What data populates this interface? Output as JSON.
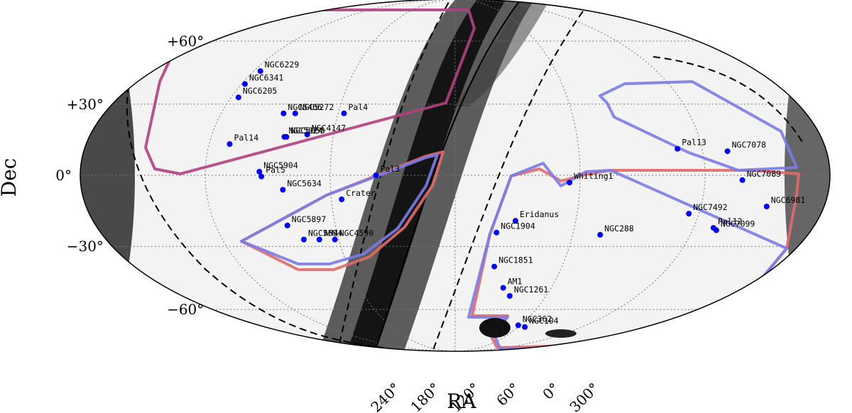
{
  "chart_data": {
    "type": "scatter",
    "projection": "mollweide",
    "xlabel": "RA",
    "ylabel": "Dec",
    "dec_ticks": [
      {
        "dec": 60,
        "label": "+60°"
      },
      {
        "dec": 30,
        "label": "+30°"
      },
      {
        "dec": 0,
        "label": "0°"
      },
      {
        "dec": -30,
        "label": "−30°"
      },
      {
        "dec": -60,
        "label": "−60°"
      }
    ],
    "ra_ticks": [
      "240°",
      "180°",
      "120°",
      "60°",
      "0°",
      "300°"
    ],
    "clusters": [
      {
        "name": "NGC6229",
        "lon": -116,
        "lat": 45
      },
      {
        "name": "NGC6341",
        "lon": -118,
        "lat": 39
      },
      {
        "name": "NGC6205",
        "lon": -116,
        "lat": 33
      },
      {
        "name": "NGC5466",
        "lon": -88,
        "lat": 26
      },
      {
        "name": "NGC5272",
        "lon": -82,
        "lat": 26
      },
      {
        "name": "Pal4",
        "lon": -57,
        "lat": 26
      },
      {
        "name": "NGC4147",
        "lon": -73,
        "lat": 17
      },
      {
        "name": "NGC5024",
        "lon": -84,
        "lat": 16
      },
      {
        "name": "NGC5053",
        "lon": -83,
        "lat": 16
      },
      {
        "name": "Pal14",
        "lon": -110,
        "lat": 13
      },
      {
        "name": "NGC5904",
        "lon": -94,
        "lat": 1.5
      },
      {
        "name": "Pal5",
        "lon": -93,
        "lat": -0.5
      },
      {
        "name": "NGC5634",
        "lon": -83,
        "lat": -6
      },
      {
        "name": "Pal3",
        "lon": -38,
        "lat": 0
      },
      {
        "name": "Crater",
        "lon": -55,
        "lat": -10
      },
      {
        "name": "NGC5897",
        "lon": -84,
        "lat": -21
      },
      {
        "name": "NGC5694",
        "lon": -78,
        "lat": -27
      },
      {
        "name": "AM4",
        "lon": -70,
        "lat": -27
      },
      {
        "name": "NGC4590",
        "lon": -62,
        "lat": -27
      },
      {
        "name": "Whiting1",
        "lon": 55,
        "lat": -3
      },
      {
        "name": "Eridanus",
        "lon": 30,
        "lat": -19
      },
      {
        "name": "NGC1904",
        "lon": 21,
        "lat": -24
      },
      {
        "name": "NGC288",
        "lon": 74,
        "lat": -25
      },
      {
        "name": "NGC1851",
        "lon": 22,
        "lat": -39
      },
      {
        "name": "AM1",
        "lon": 30,
        "lat": -49
      },
      {
        "name": "NGC1261",
        "lon": 36,
        "lat": -53
      },
      {
        "name": "NGC362",
        "lon": 58,
        "lat": -69
      },
      {
        "name": "NGC104",
        "lon": 66,
        "lat": -70
      },
      {
        "name": "Pal13",
        "lon": 108,
        "lat": 11
      },
      {
        "name": "NGC7078",
        "lon": 132,
        "lat": 10
      },
      {
        "name": "NGC7089",
        "lon": 138,
        "lat": -2
      },
      {
        "name": "NGC6981",
        "lon": 152,
        "lat": -13
      },
      {
        "name": "NGC7492",
        "lon": 115,
        "lat": -16
      },
      {
        "name": "Pal12",
        "lon": 130,
        "lat": -22
      },
      {
        "name": "NGC7099",
        "lon": 132,
        "lat": -23
      }
    ],
    "footprints": [
      {
        "name": "northern region A",
        "color": "#b0407e"
      },
      {
        "name": "northern region B (red)",
        "color": "#e06a6a"
      },
      {
        "name": "northern region B (blue)",
        "color": "#7b7be6"
      },
      {
        "name": "southern region (red)",
        "color": "#e06a6a"
      },
      {
        "name": "southern region (blue)",
        "color": "#7b7be6"
      },
      {
        "name": "eastern region (blue)",
        "color": "#7b7be6"
      }
    ],
    "galactic_plane_style": "solid",
    "galactic_offset_style": "dashed"
  }
}
